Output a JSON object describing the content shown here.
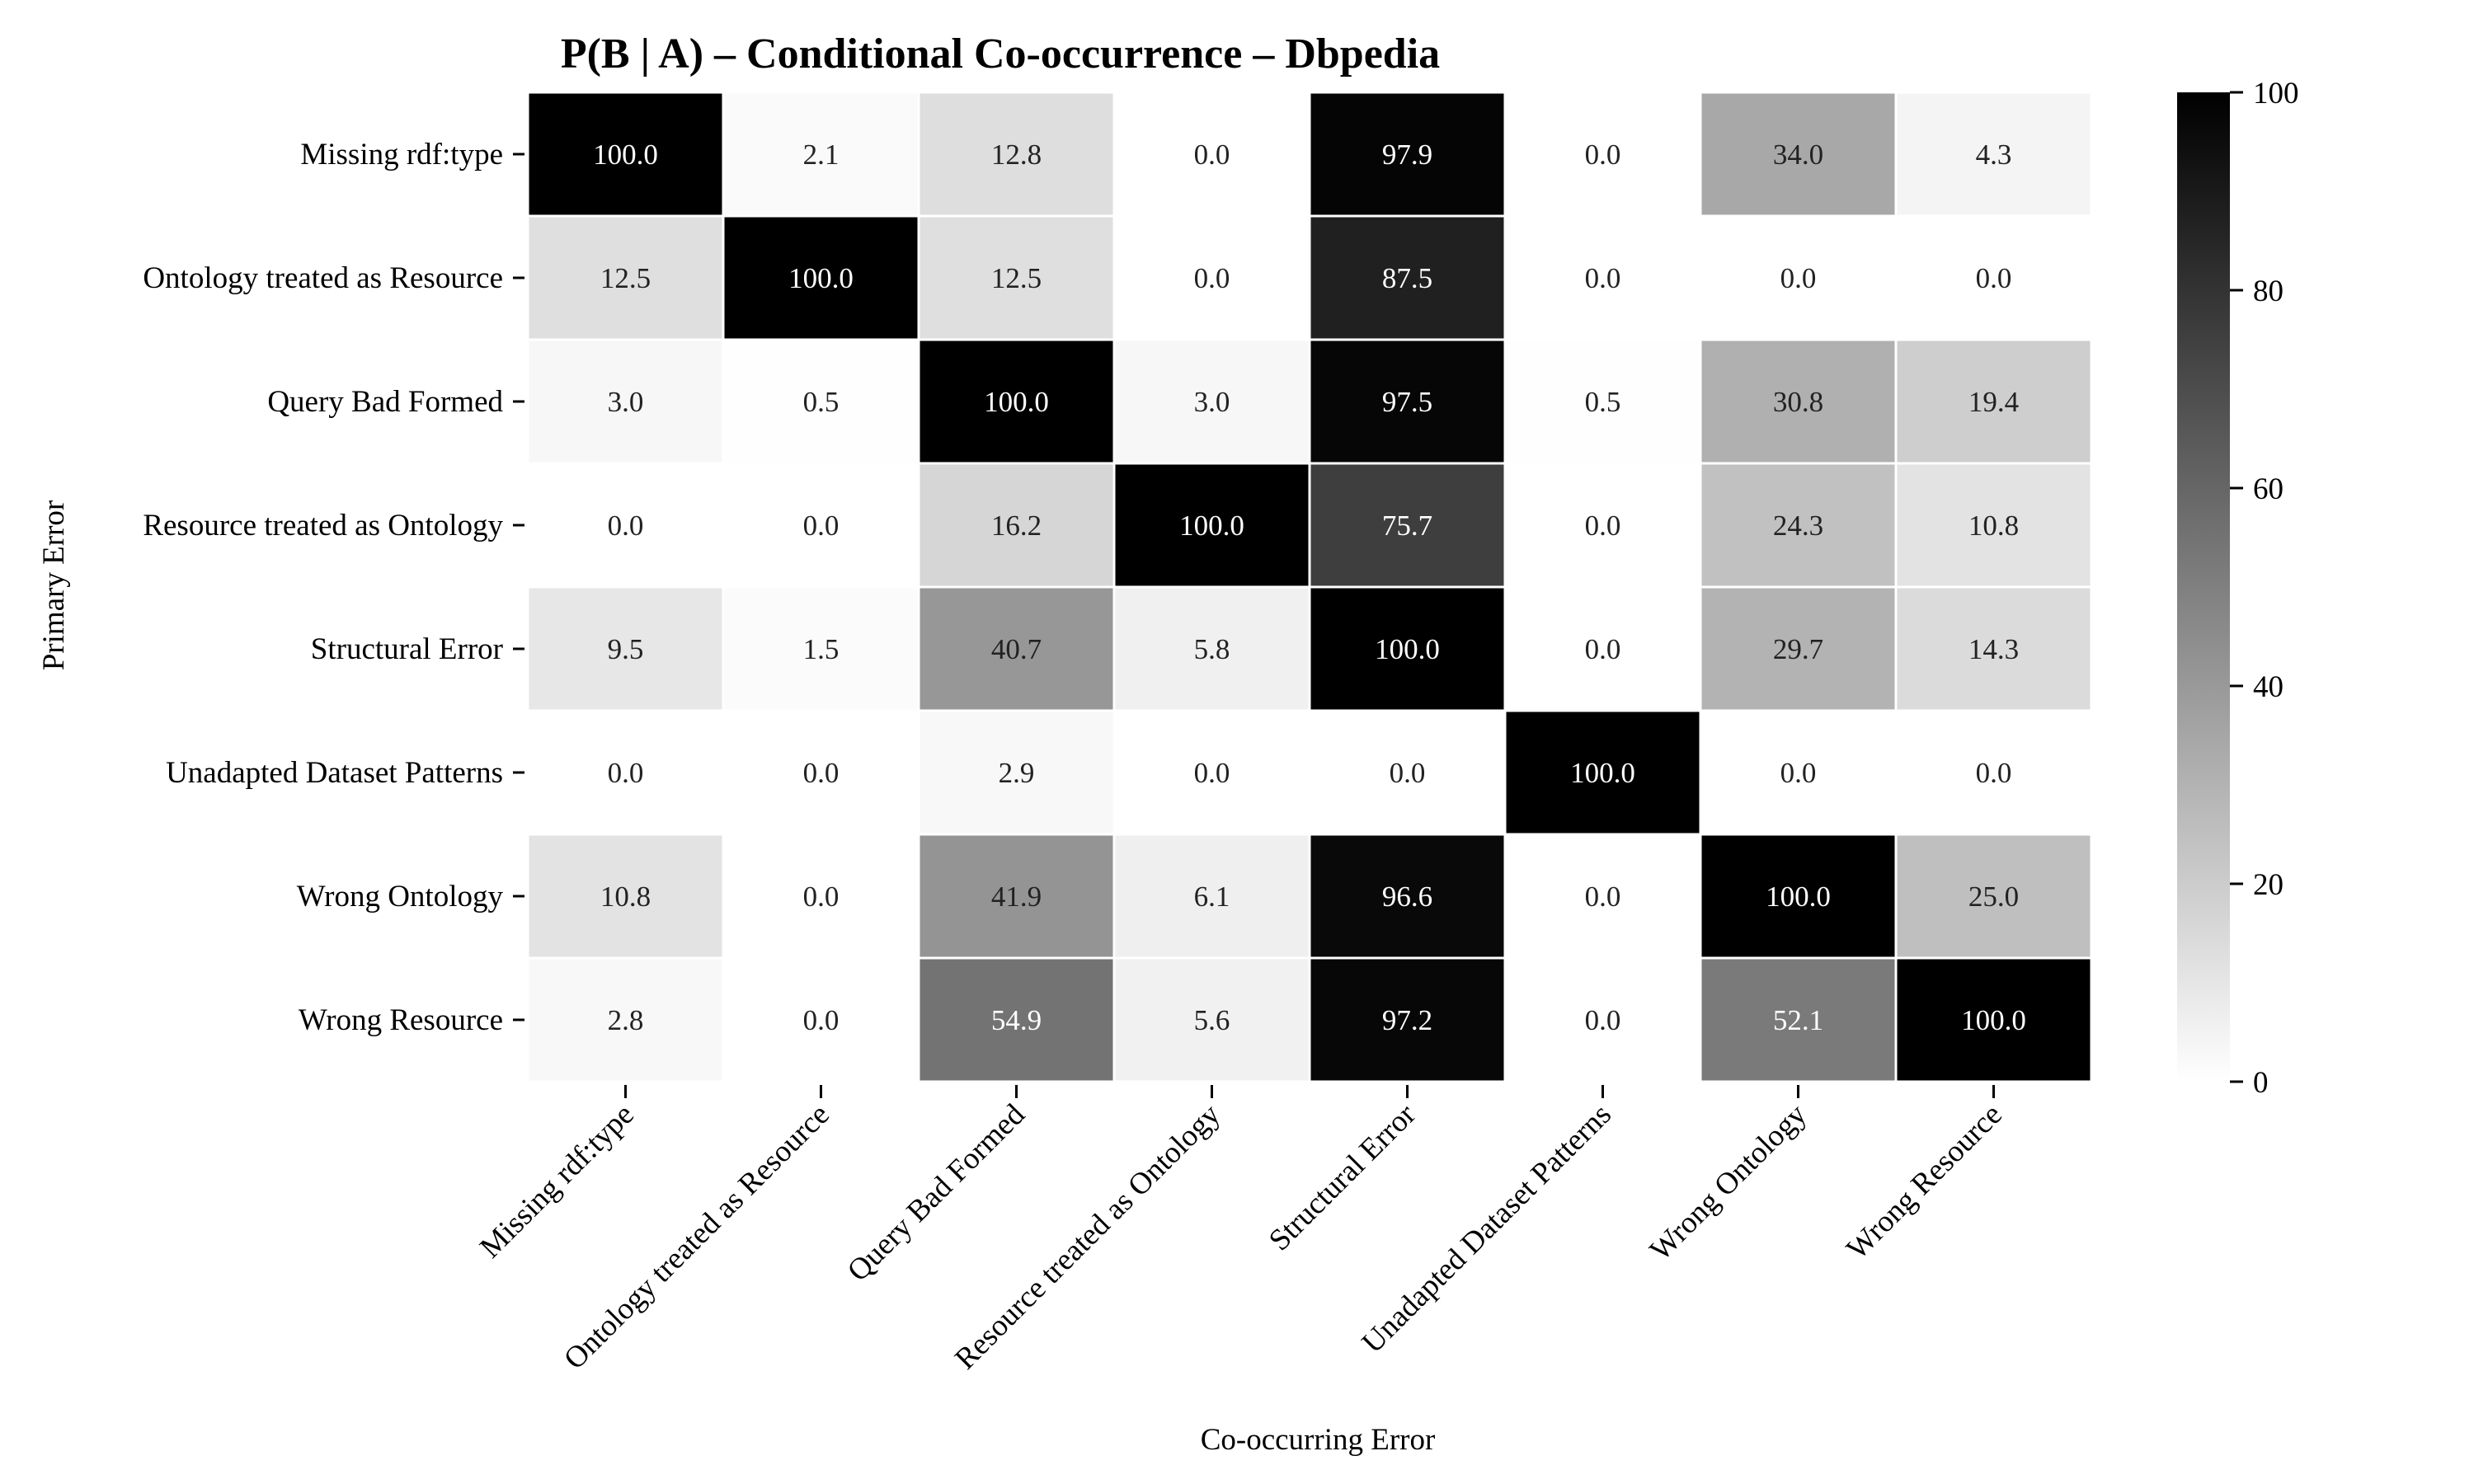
{
  "chart_data": {
    "type": "heatmap",
    "title": "P(B | A) – Conditional Co-occurrence – Dbpedia",
    "xlabel": "Co-occurring Error",
    "ylabel": "Primary Error",
    "rows": [
      "Missing rdf:type",
      "Ontology treated as Resource",
      "Query Bad Formed",
      "Resource treated as Ontology",
      "Structural Error",
      "Unadapted Dataset Patterns",
      "Wrong Ontology",
      "Wrong Resource"
    ],
    "columns": [
      "Missing rdf:type",
      "Ontology treated as Resource",
      "Query Bad Formed",
      "Resource treated as Ontology",
      "Structural Error",
      "Unadapted Dataset Patterns",
      "Wrong Ontology",
      "Wrong Resource"
    ],
    "values": [
      [
        100.0,
        2.1,
        12.8,
        0.0,
        97.9,
        0.0,
        34.0,
        4.3
      ],
      [
        12.5,
        100.0,
        12.5,
        0.0,
        87.5,
        0.0,
        0.0,
        0.0
      ],
      [
        3.0,
        0.5,
        100.0,
        3.0,
        97.5,
        0.5,
        30.8,
        19.4
      ],
      [
        0.0,
        0.0,
        16.2,
        100.0,
        75.7,
        0.0,
        24.3,
        10.8
      ],
      [
        9.5,
        1.5,
        40.7,
        5.8,
        100.0,
        0.0,
        29.7,
        14.3
      ],
      [
        0.0,
        0.0,
        2.9,
        0.0,
        0.0,
        100.0,
        0.0,
        0.0
      ],
      [
        10.8,
        0.0,
        41.9,
        6.1,
        96.6,
        0.0,
        100.0,
        25.0
      ],
      [
        2.8,
        0.0,
        54.9,
        5.6,
        97.2,
        0.0,
        52.1,
        100.0
      ]
    ],
    "value_format": "one decimal",
    "colorbar": {
      "min": 0,
      "max": 100,
      "ticks": [
        "0",
        "20",
        "40",
        "60",
        "80",
        "100"
      ]
    },
    "colormap": "white to black (Greys)",
    "colors": {
      "low": "#ffffff",
      "high": "#000000",
      "grid": "#ffffff"
    }
  }
}
